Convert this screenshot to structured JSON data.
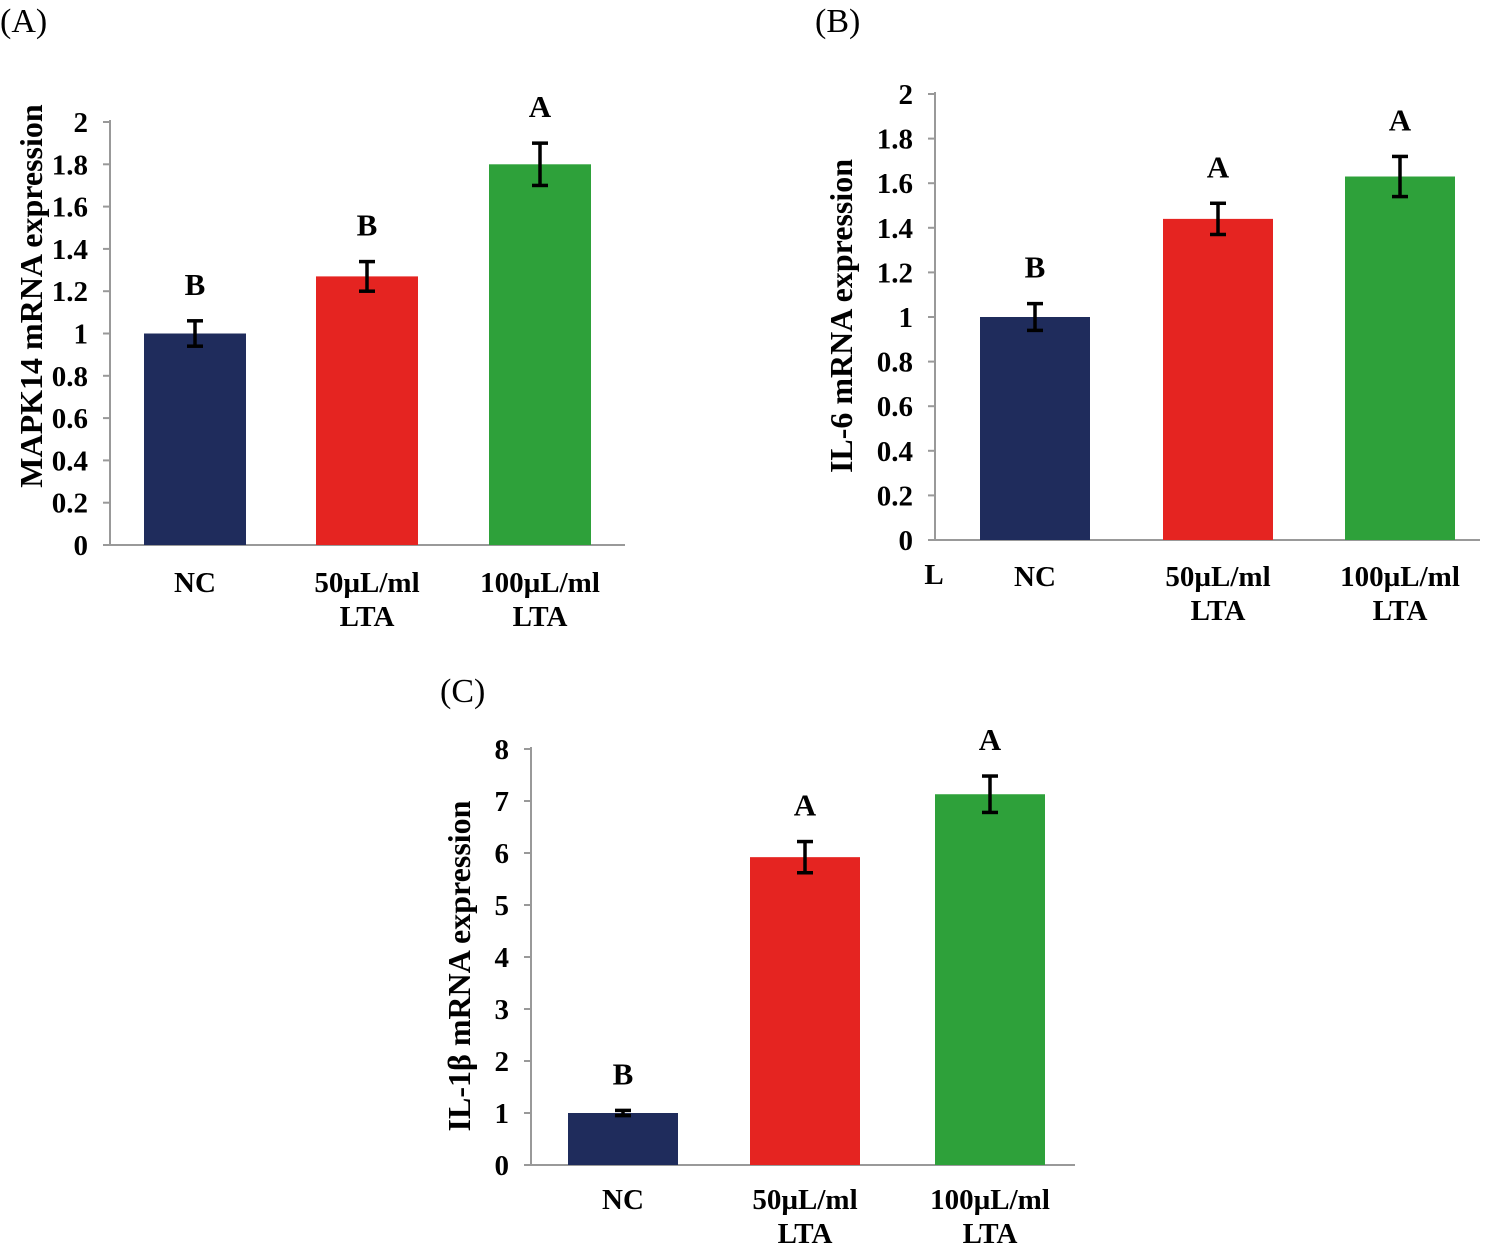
{
  "figure_labels": {
    "stray_x_label_B": "L"
  },
  "chart_data": [
    {
      "panel": "(A)",
      "type": "bar",
      "title": "",
      "xlabel": "",
      "ylabel": "MAPK14 mRNA expression",
      "ylim": [
        0,
        2
      ],
      "yticks": [
        0,
        0.2,
        0.4,
        0.6,
        0.8,
        1,
        1.2,
        1.4,
        1.6,
        1.8,
        2
      ],
      "categories": [
        [
          "NC"
        ],
        [
          "50µL/ml",
          "LTA"
        ],
        [
          "100µL/ml",
          "LTA"
        ]
      ],
      "values": [
        1.0,
        1.27,
        1.8
      ],
      "errors": [
        0.06,
        0.07,
        0.1
      ],
      "significance": [
        "B",
        "B",
        "A"
      ],
      "colors": [
        "#1f2c5c",
        "#e52421",
        "#2ea13a"
      ]
    },
    {
      "panel": "(B)",
      "type": "bar",
      "title": "",
      "xlabel": "",
      "ylabel": "IL-6 mRNA expression",
      "ylim": [
        0,
        2
      ],
      "yticks": [
        0,
        0.2,
        0.4,
        0.6,
        0.8,
        1,
        1.2,
        1.4,
        1.6,
        1.8,
        2
      ],
      "categories": [
        [
          "NC"
        ],
        [
          "50µL/ml",
          "LTA"
        ],
        [
          "100µL/ml",
          "LTA"
        ]
      ],
      "values": [
        1.0,
        1.44,
        1.63
      ],
      "errors": [
        0.06,
        0.07,
        0.09
      ],
      "significance": [
        "B",
        "A",
        "A"
      ],
      "colors": [
        "#1f2c5c",
        "#e52421",
        "#2ea13a"
      ]
    },
    {
      "panel": "(C)",
      "type": "bar",
      "title": "",
      "xlabel": "",
      "ylabel": "IL-1β  mRNA expression",
      "ylim": [
        0,
        8
      ],
      "yticks": [
        0,
        1,
        2,
        3,
        4,
        5,
        6,
        7,
        8
      ],
      "categories": [
        [
          "NC"
        ],
        [
          "50µL/ml",
          "LTA"
        ],
        [
          "100µL/ml",
          "LTA"
        ]
      ],
      "values": [
        1.0,
        5.92,
        7.13
      ],
      "errors": [
        0.05,
        0.3,
        0.35
      ],
      "significance": [
        "B",
        "A",
        "A"
      ],
      "colors": [
        "#1f2c5c",
        "#e52421",
        "#2ea13a"
      ]
    }
  ]
}
